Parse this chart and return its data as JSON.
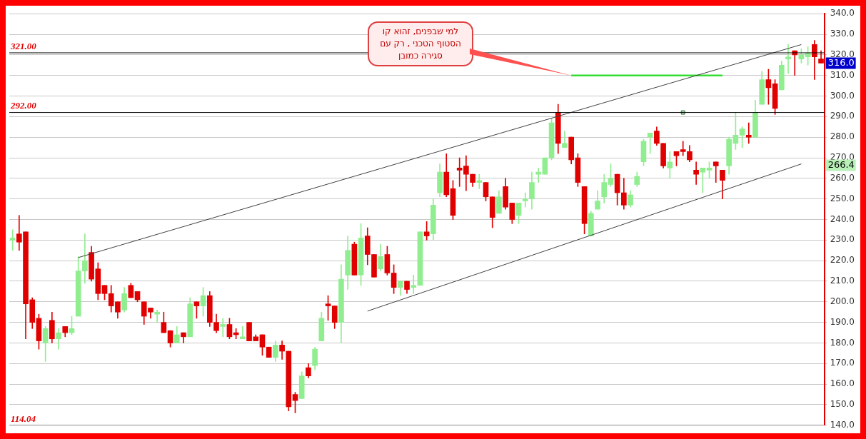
{
  "chart_data": {
    "type": "candlestick",
    "categories": [
      null,
      null,
      null,
      null,
      null,
      null,
      null,
      null,
      null,
      null,
      null,
      null,
      null,
      null,
      null,
      null,
      null,
      null,
      null,
      null,
      null,
      null,
      null,
      null,
      null,
      null,
      null,
      null,
      null,
      null,
      null,
      null,
      null,
      null,
      null,
      null,
      null,
      null,
      null,
      null,
      null,
      null,
      null,
      null,
      null,
      null,
      null,
      null,
      null,
      null,
      null,
      null,
      null,
      null,
      null,
      null,
      null,
      null,
      null,
      null,
      null,
      null,
      null,
      null,
      null,
      null,
      null,
      null,
      null,
      null,
      null,
      null,
      null,
      null,
      null,
      null,
      null,
      null,
      null,
      null,
      null,
      null,
      null,
      null,
      null,
      null,
      null,
      null,
      null,
      null,
      null,
      null,
      null,
      null,
      null,
      null,
      null,
      null,
      null,
      null,
      null,
      null,
      null,
      null,
      null,
      null,
      null,
      null,
      null,
      null,
      null,
      null,
      null,
      null,
      null,
      null,
      null,
      null,
      null,
      null,
      null,
      null,
      null,
      null
    ],
    "ohlc": [
      [
        230,
        235,
        225,
        231
      ],
      [
        233,
        242,
        225,
        229
      ],
      [
        234,
        234,
        182,
        199
      ],
      [
        201,
        202,
        187,
        190
      ],
      [
        192,
        194,
        177,
        181
      ],
      [
        180,
        188,
        171,
        187
      ],
      [
        191,
        195,
        180,
        182
      ],
      [
        182,
        187,
        177,
        185
      ],
      [
        188,
        188,
        183,
        185
      ],
      [
        185,
        193,
        184,
        187
      ],
      [
        193,
        222,
        193,
        215
      ],
      [
        215,
        233,
        209,
        220
      ],
      [
        224,
        227,
        210,
        211
      ],
      [
        216,
        219,
        201,
        204
      ],
      [
        208,
        208,
        201,
        204
      ],
      [
        204,
        208,
        195,
        198
      ],
      [
        200,
        200,
        192,
        195
      ],
      [
        196,
        207,
        195,
        204
      ],
      [
        208,
        209,
        202,
        202
      ],
      [
        205,
        205,
        200,
        201
      ],
      [
        200,
        200,
        189,
        193
      ],
      [
        197,
        197,
        192,
        195
      ],
      [
        194,
        196,
        190,
        195
      ],
      [
        190,
        195,
        185,
        185
      ],
      [
        186,
        186,
        178,
        180
      ],
      [
        180,
        188,
        180,
        184
      ],
      [
        185,
        185,
        180,
        183
      ],
      [
        183,
        202,
        183,
        199
      ],
      [
        200,
        200,
        192,
        198
      ],
      [
        198,
        207,
        193,
        203
      ],
      [
        203,
        205,
        188,
        190
      ],
      [
        190,
        194,
        185,
        186
      ],
      [
        188,
        192,
        183,
        189
      ],
      [
        189,
        192,
        182,
        183
      ],
      [
        185,
        187,
        182,
        184
      ],
      [
        182,
        188,
        182,
        183
      ],
      [
        190,
        190,
        181,
        181
      ],
      [
        183,
        184,
        181,
        181
      ],
      [
        184,
        184,
        174,
        178
      ],
      [
        178,
        178,
        173,
        173
      ],
      [
        173,
        181,
        171,
        179
      ],
      [
        179,
        181,
        172,
        176
      ],
      [
        176,
        176,
        147,
        149
      ],
      [
        155,
        156,
        146,
        152
      ],
      [
        153,
        166,
        153,
        164
      ],
      [
        168,
        170,
        163,
        164
      ],
      [
        169,
        178,
        167,
        177
      ],
      [
        181,
        195,
        181,
        192
      ],
      [
        199,
        203,
        191,
        198
      ],
      [
        198,
        198,
        187,
        190
      ],
      [
        190,
        218,
        180,
        211
      ],
      [
        213,
        232,
        206,
        225
      ],
      [
        228,
        229,
        213,
        213
      ],
      [
        213,
        238,
        208,
        231
      ],
      [
        232,
        236,
        218,
        223
      ],
      [
        223,
        223,
        212,
        212
      ],
      [
        216,
        228,
        215,
        222
      ],
      [
        223,
        227,
        213,
        214
      ],
      [
        214,
        218,
        204,
        207
      ],
      [
        207,
        210,
        203,
        210
      ],
      [
        210,
        210,
        204,
        206
      ],
      [
        207,
        213,
        204,
        208
      ],
      [
        208,
        234,
        208,
        234
      ],
      [
        234,
        239,
        230,
        232
      ],
      [
        233,
        250,
        230,
        247
      ],
      [
        253,
        267,
        251,
        263
      ],
      [
        263,
        272,
        251,
        252
      ],
      [
        255,
        259,
        240,
        242
      ],
      [
        265,
        270,
        256,
        264
      ],
      [
        266,
        271,
        254,
        262
      ],
      [
        262,
        262,
        256,
        258
      ],
      [
        258,
        262,
        255,
        259
      ],
      [
        258,
        258,
        249,
        251
      ],
      [
        251,
        251,
        236,
        241
      ],
      [
        243,
        254,
        243,
        251
      ],
      [
        256,
        260,
        245,
        246
      ],
      [
        248,
        248,
        238,
        240
      ],
      [
        242,
        248,
        238,
        248
      ],
      [
        249,
        253,
        246,
        250
      ],
      [
        250,
        263,
        245,
        258
      ],
      [
        262,
        265,
        258,
        263
      ],
      [
        262,
        270,
        262,
        270
      ],
      [
        270,
        289,
        269,
        287
      ],
      [
        292,
        296,
        272,
        277
      ],
      [
        275,
        283,
        275,
        277
      ],
      [
        280,
        280,
        267,
        269
      ],
      [
        270,
        272,
        256,
        258
      ],
      [
        256,
        256,
        233,
        238
      ],
      [
        232,
        244,
        232,
        243
      ],
      [
        245,
        254,
        245,
        249
      ],
      [
        251,
        262,
        248,
        258
      ],
      [
        257,
        267,
        256,
        260
      ],
      [
        262,
        262,
        247,
        253
      ],
      [
        253,
        260,
        245,
        247
      ],
      [
        247,
        254,
        246,
        252
      ],
      [
        257,
        263,
        256,
        261
      ],
      [
        268,
        279,
        266,
        278
      ],
      [
        280,
        282,
        272,
        282
      ],
      [
        283,
        285,
        276,
        277
      ],
      [
        277,
        277,
        265,
        266
      ],
      [
        265,
        273,
        260,
        268
      ],
      [
        273,
        273,
        266,
        271
      ],
      [
        274,
        278,
        271,
        273
      ],
      [
        273,
        276,
        268,
        269
      ],
      [
        264,
        268,
        257,
        262
      ],
      [
        263,
        265,
        253,
        265
      ],
      [
        264,
        268,
        260,
        265
      ],
      [
        268,
        268,
        258,
        266
      ],
      [
        264,
        264,
        250,
        259
      ],
      [
        266,
        280,
        262,
        279
      ],
      [
        277,
        292,
        274,
        281
      ],
      [
        281,
        285,
        275,
        284
      ],
      [
        281,
        287,
        277,
        280
      ],
      [
        280,
        298,
        280,
        292
      ],
      [
        296,
        312,
        296,
        308
      ],
      [
        308,
        313,
        296,
        304
      ],
      [
        306,
        308,
        291,
        294
      ],
      [
        303,
        317,
        303,
        315
      ],
      [
        318,
        325,
        311,
        319
      ],
      [
        322,
        322,
        310,
        320
      ],
      [
        318,
        323,
        316,
        320
      ],
      [
        319,
        324,
        315,
        321
      ],
      [
        325,
        327,
        308,
        319
      ],
      [
        318,
        322,
        316,
        316
      ]
    ],
    "colors": [
      "#90ee90",
      "#e00000",
      "#e00000",
      "#e00000",
      "#e00000",
      "#90ee90",
      "#e00000",
      "#90ee90",
      "#e00000",
      "#90ee90",
      "#90ee90",
      "#90ee90",
      "#e00000",
      "#e00000",
      "#e00000",
      "#e00000",
      "#e00000",
      "#90ee90",
      "#e00000",
      "#e00000",
      "#e00000",
      "#e00000",
      "#90ee90",
      "#e00000",
      "#e00000",
      "#90ee90",
      "#e00000",
      "#90ee90",
      "#e00000",
      "#90ee90",
      "#e00000",
      "#e00000",
      "#90ee90",
      "#e00000",
      "#e00000",
      "#90ee90",
      "#e00000",
      "#e00000",
      "#e00000",
      "#e00000",
      "#90ee90",
      "#e00000",
      "#e00000",
      "#e00000",
      "#90ee90",
      "#e00000",
      "#90ee90",
      "#90ee90",
      "#e00000",
      "#e00000",
      "#90ee90",
      "#90ee90",
      "#e00000",
      "#90ee90",
      "#e00000",
      "#e00000",
      "#90ee90",
      "#e00000",
      "#e00000",
      "#90ee90",
      "#e00000",
      "#90ee90",
      "#90ee90",
      "#e00000",
      "#90ee90",
      "#90ee90",
      "#e00000",
      "#e00000",
      "#e00000",
      "#e00000",
      "#e00000",
      "#90ee90",
      "#e00000",
      "#e00000",
      "#90ee90",
      "#e00000",
      "#e00000",
      "#90ee90",
      "#90ee90",
      "#90ee90",
      "#90ee90",
      "#90ee90",
      "#90ee90",
      "#e00000",
      "#90ee90",
      "#e00000",
      "#e00000",
      "#e00000",
      "#90ee90",
      "#90ee90",
      "#90ee90",
      "#90ee90",
      "#e00000",
      "#e00000",
      "#90ee90",
      "#90ee90",
      "#90ee90",
      "#90ee90",
      "#e00000",
      "#e00000",
      "#90ee90",
      "#e00000",
      "#e00000",
      "#e00000",
      "#e00000",
      "#90ee90",
      "#90ee90",
      "#e00000",
      "#e00000",
      "#90ee90",
      "#90ee90",
      "#90ee90",
      "#e00000",
      "#90ee90",
      "#90ee90",
      "#e00000",
      "#e00000",
      "#90ee90",
      "#90ee90",
      "#e00000",
      "#90ee90",
      "#90ee90",
      "#e00000",
      "#e00000"
    ],
    "series": [
      {
        "type": "line",
        "color": "#404040",
        "values": [
          null,
          null,
          null,
          null,
          null,
          null,
          null,
          null,
          null,
          null,
          221.5,
          null,
          null,
          null,
          null,
          null,
          null,
          null,
          null,
          null,
          null,
          null,
          null,
          null,
          null,
          null,
          null,
          null,
          null,
          null,
          null,
          null,
          null,
          null,
          null,
          null,
          null,
          null,
          null,
          null,
          null,
          null,
          null,
          null,
          null,
          null,
          null,
          null,
          null,
          null,
          null,
          null,
          null,
          null,
          null,
          null,
          null,
          null,
          null,
          null,
          null,
          null,
          null,
          null,
          null,
          null,
          null,
          null,
          null,
          null,
          null,
          null,
          null,
          null,
          null,
          null,
          null,
          null,
          null,
          null,
          null,
          null,
          null,
          null,
          null,
          null,
          null,
          null,
          null,
          null,
          null,
          null,
          null,
          null,
          null,
          null,
          null,
          null,
          null,
          null,
          null,
          null,
          null,
          null,
          null,
          null,
          null,
          null,
          null,
          null,
          null,
          null,
          null,
          null,
          null,
          null,
          null,
          null,
          null,
          null,
          325,
          null,
          null,
          null
        ]
      },
      {
        "type": "line",
        "color": "#404040",
        "values": [
          null,
          null,
          null,
          null,
          null,
          null,
          null,
          null,
          null,
          null,
          null,
          null,
          null,
          null,
          null,
          null,
          null,
          null,
          null,
          null,
          null,
          null,
          null,
          null,
          null,
          null,
          null,
          null,
          null,
          null,
          null,
          null,
          null,
          null,
          null,
          null,
          null,
          null,
          null,
          null,
          null,
          null,
          null,
          null,
          null,
          null,
          null,
          null,
          null,
          null,
          null,
          null,
          null,
          null,
          195.5,
          null,
          null,
          null,
          null,
          null,
          null,
          null,
          null,
          null,
          null,
          null,
          null,
          null,
          null,
          null,
          null,
          null,
          null,
          null,
          null,
          null,
          null,
          null,
          null,
          null,
          null,
          null,
          null,
          null,
          null,
          null,
          null,
          null,
          null,
          null,
          null,
          null,
          null,
          null,
          null,
          null,
          null,
          null,
          null,
          null,
          null,
          null,
          null,
          null,
          null,
          null,
          null,
          null,
          null,
          null,
          null,
          null,
          null,
          null,
          null,
          null,
          null,
          null,
          null,
          null,
          267,
          null,
          null,
          null
        ]
      },
      {
        "type": "line",
        "color": "#33dd33",
        "values": [
          null,
          null,
          null,
          null,
          null,
          null,
          null,
          null,
          null,
          null,
          null,
          null,
          null,
          null,
          null,
          null,
          null,
          null,
          null,
          null,
          null,
          null,
          null,
          null,
          null,
          null,
          null,
          null,
          null,
          null,
          null,
          null,
          null,
          null,
          null,
          null,
          null,
          null,
          null,
          null,
          null,
          null,
          null,
          null,
          null,
          null,
          null,
          null,
          null,
          null,
          null,
          null,
          null,
          null,
          null,
          null,
          null,
          null,
          null,
          null,
          null,
          null,
          null,
          null,
          null,
          null,
          null,
          null,
          null,
          null,
          null,
          null,
          null,
          null,
          null,
          null,
          null,
          null,
          null,
          null,
          null,
          null,
          null,
          null,
          null,
          310,
          null,
          null,
          null,
          null,
          null,
          null,
          null,
          null,
          null,
          null,
          null,
          null,
          null,
          null,
          null,
          null,
          null,
          null,
          null,
          null,
          null,
          null,
          310,
          null,
          null,
          null,
          null,
          null,
          null,
          null,
          null,
          null,
          null,
          null,
          null,
          null,
          null,
          null
        ]
      },
      {
        "type": "scatter",
        "marker": "square",
        "color": "#a0e0a0",
        "values": [
          null,
          null,
          null,
          null,
          null,
          null,
          null,
          null,
          null,
          null,
          null,
          null,
          null,
          null,
          null,
          null,
          null,
          null,
          null,
          null,
          null,
          null,
          null,
          null,
          null,
          null,
          null,
          null,
          null,
          null,
          null,
          null,
          null,
          null,
          null,
          null,
          null,
          null,
          null,
          null,
          null,
          null,
          null,
          null,
          null,
          null,
          null,
          null,
          null,
          null,
          null,
          null,
          null,
          null,
          null,
          null,
          null,
          null,
          null,
          null,
          null,
          null,
          null,
          null,
          null,
          null,
          null,
          null,
          null,
          null,
          null,
          null,
          null,
          null,
          null,
          null,
          null,
          null,
          null,
          null,
          null,
          null,
          null,
          null,
          null,
          null,
          null,
          null,
          null,
          null,
          null,
          null,
          null,
          null,
          null,
          null,
          null,
          null,
          null,
          null,
          null,
          null,
          292,
          null,
          null,
          null,
          null,
          null,
          null,
          null,
          null,
          null,
          null,
          null,
          null,
          null,
          null,
          null,
          null,
          null,
          null,
          null,
          null,
          null
        ]
      }
    ],
    "ylim": [
      140,
      340
    ],
    "yticks": [
      {
        "value": 140,
        "label": "140.0"
      },
      {
        "value": 150,
        "label": "150.0"
      },
      {
        "value": 160,
        "label": "160.0"
      },
      {
        "value": 170,
        "label": "170.0"
      },
      {
        "value": 180,
        "label": "180.0"
      },
      {
        "value": 190,
        "label": "190.0"
      },
      {
        "value": 200,
        "label": "200.0"
      },
      {
        "value": 210,
        "label": "210.0"
      },
      {
        "value": 220,
        "label": "220.0"
      },
      {
        "value": 230,
        "label": "230.0"
      },
      {
        "value": 240,
        "label": "240.0"
      },
      {
        "value": 250,
        "label": "250.0"
      },
      {
        "value": 260,
        "label": "260.0"
      },
      {
        "value": 270,
        "label": "270.0"
      },
      {
        "value": 280,
        "label": "280.0"
      },
      {
        "value": 290,
        "label": "290.0"
      },
      {
        "value": 300,
        "label": "300.0"
      },
      {
        "value": 310,
        "label": "310.0"
      },
      {
        "value": 320,
        "label": "320.0"
      },
      {
        "value": 330,
        "label": "330.0"
      },
      {
        "value": 340,
        "label": "340.0"
      }
    ],
    "ref_lines": [
      {
        "axis": "y",
        "value": 321,
        "label": "321.00",
        "color": "#000000"
      },
      {
        "axis": "y",
        "value": 292,
        "label": "292.00",
        "color": "#000000"
      }
    ],
    "annotations": [
      "למי שבפנים, זהוא קו הסטוף הטכני , רק עם סגירה כמובן",
      "114.04",
      {
        "text": "316.0",
        "y": 316
      },
      {
        "text": "266.4",
        "y": 266.4
      }
    ],
    "grid": "y",
    "tick_labels": "y"
  }
}
